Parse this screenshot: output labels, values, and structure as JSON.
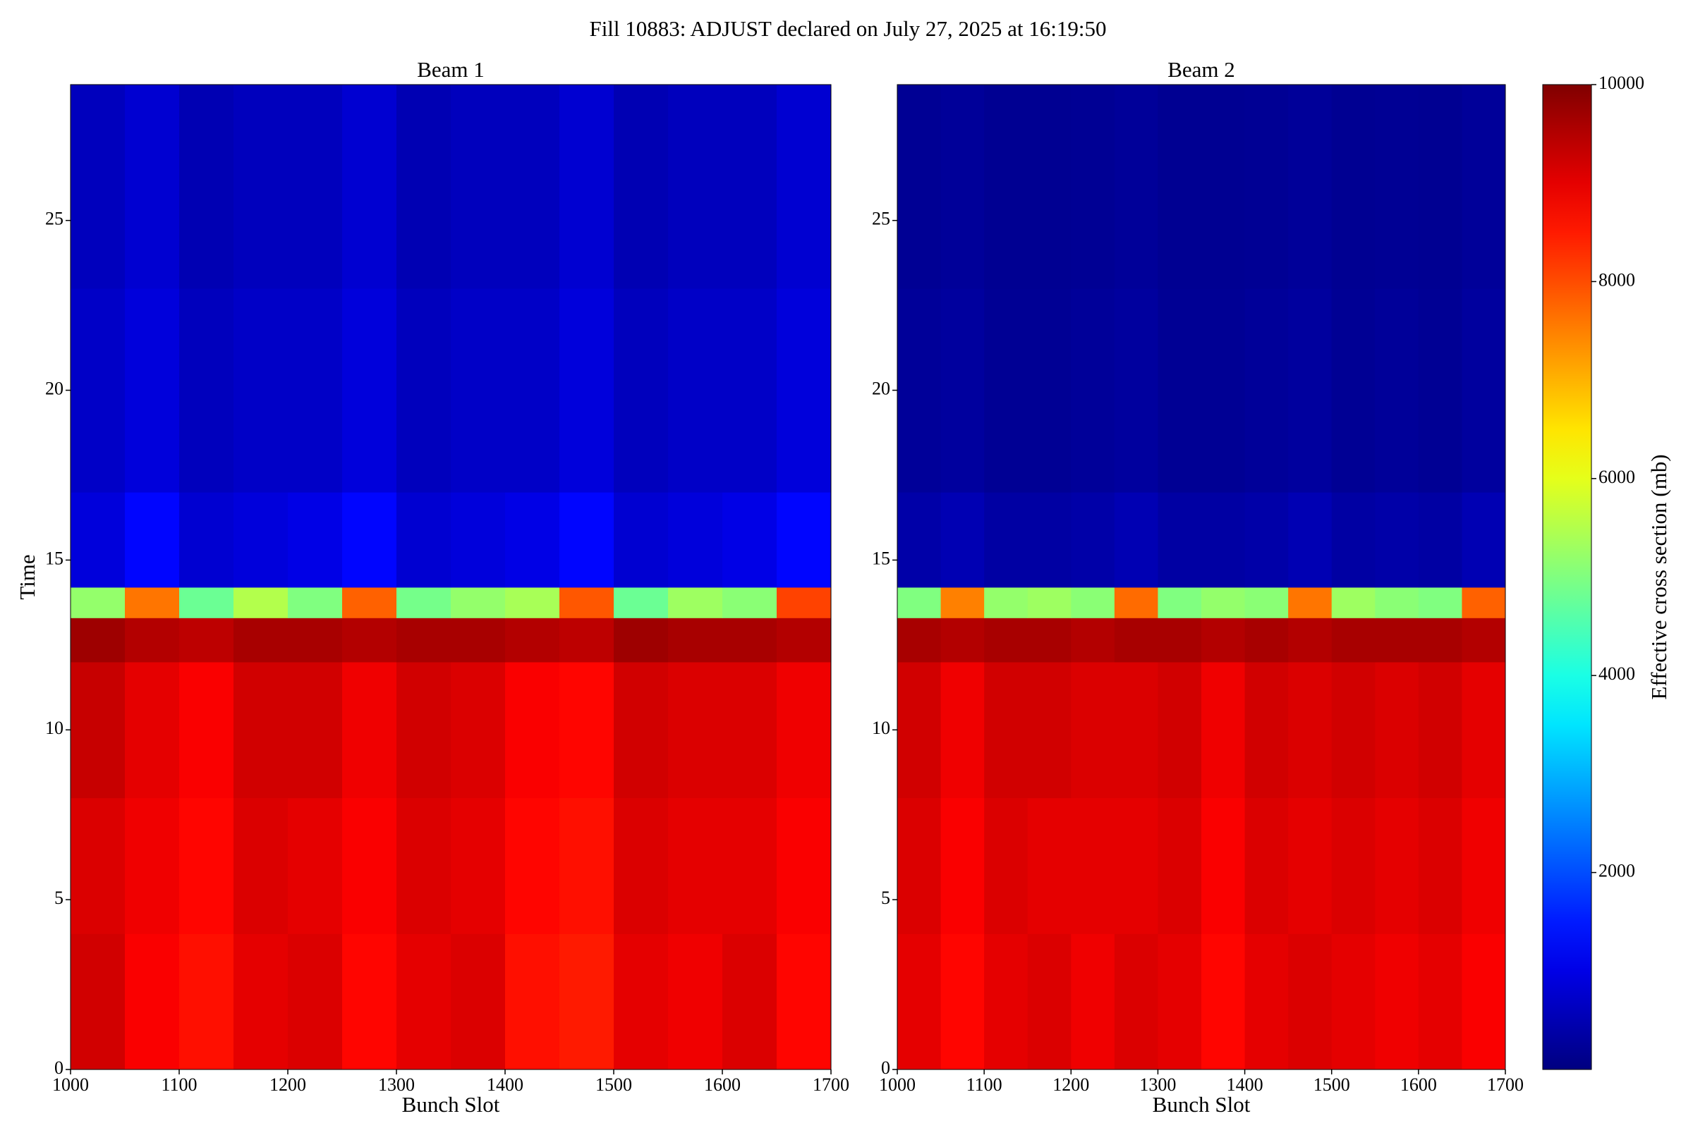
{
  "title": "Fill 10883: ADJUST declared on July 27, 2025 at 16:19:50",
  "chart_data": [
    {
      "type": "heatmap",
      "title": "Beam 1",
      "xlabel": "Bunch Slot",
      "ylabel": "Time",
      "x_edges": [
        1000,
        1050,
        1100,
        1150,
        1200,
        1250,
        1300,
        1350,
        1400,
        1450,
        1500,
        1550,
        1600,
        1650,
        1700
      ],
      "y_edges": [
        0,
        4,
        8,
        12,
        13.3,
        14.2,
        17,
        23,
        29
      ],
      "z": [
        [
          9200,
          8800,
          8600,
          9000,
          9100,
          8700,
          9000,
          9100,
          8600,
          8500,
          9000,
          8900,
          9100,
          8700
        ],
        [
          9100,
          8900,
          8700,
          9100,
          9000,
          8800,
          9100,
          9000,
          8700,
          8600,
          9100,
          9000,
          9000,
          8800
        ],
        [
          9300,
          9000,
          8800,
          9200,
          9200,
          8900,
          9200,
          9100,
          8800,
          8700,
          9200,
          9100,
          9100,
          8900
        ],
        [
          9700,
          9500,
          9400,
          9600,
          9600,
          9500,
          9600,
          9600,
          9500,
          9400,
          9700,
          9600,
          9600,
          9500
        ],
        [
          5200,
          7600,
          4800,
          5500,
          5000,
          7800,
          4900,
          5200,
          5400,
          7900,
          4800,
          5300,
          5100,
          8100
        ],
        [
          900,
          1300,
          800,
          900,
          1000,
          1300,
          800,
          900,
          1000,
          1300,
          800,
          900,
          1000,
          1300
        ],
        [
          700,
          900,
          600,
          700,
          700,
          900,
          600,
          700,
          700,
          900,
          600,
          700,
          700,
          900
        ],
        [
          600,
          800,
          500,
          600,
          600,
          800,
          500,
          600,
          600,
          800,
          500,
          600,
          600,
          800
        ]
      ],
      "xlim": [
        1000,
        1700
      ],
      "xticks": [
        1000,
        1100,
        1200,
        1300,
        1400,
        1500,
        1600,
        1700
      ],
      "ylim": [
        0,
        29
      ],
      "yticks": [
        0,
        5,
        10,
        15,
        20,
        25
      ]
    },
    {
      "type": "heatmap",
      "title": "Beam 2",
      "xlabel": "Bunch Slot",
      "x_edges": [
        1000,
        1050,
        1100,
        1150,
        1200,
        1250,
        1300,
        1350,
        1400,
        1450,
        1500,
        1550,
        1600,
        1650,
        1700
      ],
      "y_edges": [
        0,
        4,
        8,
        12,
        13.3,
        14.2,
        17,
        23,
        29
      ],
      "z": [
        [
          9000,
          8700,
          9000,
          9100,
          8900,
          9100,
          9000,
          8700,
          9000,
          9100,
          9000,
          8900,
          9000,
          8800
        ],
        [
          9100,
          8800,
          9100,
          9000,
          9000,
          9000,
          9100,
          8800,
          9100,
          9000,
          9100,
          9000,
          9100,
          8900
        ],
        [
          9200,
          8900,
          9200,
          9200,
          9100,
          9100,
          9200,
          8900,
          9200,
          9100,
          9200,
          9100,
          9200,
          9000
        ],
        [
          9600,
          9500,
          9600,
          9600,
          9500,
          9600,
          9600,
          9500,
          9600,
          9500,
          9600,
          9600,
          9600,
          9500
        ],
        [
          5000,
          7500,
          5200,
          5300,
          5100,
          7700,
          5000,
          5200,
          5100,
          7600,
          5300,
          5100,
          5000,
          7800
        ],
        [
          400,
          500,
          350,
          350,
          400,
          500,
          350,
          350,
          400,
          500,
          350,
          400,
          350,
          500
        ],
        [
          250,
          300,
          200,
          200,
          250,
          300,
          200,
          200,
          250,
          300,
          200,
          250,
          200,
          300
        ],
        [
          200,
          250,
          180,
          180,
          200,
          250,
          180,
          180,
          200,
          250,
          180,
          200,
          180,
          250
        ]
      ],
      "xlim": [
        1000,
        1700
      ],
      "xticks": [
        1000,
        1100,
        1200,
        1300,
        1400,
        1500,
        1600,
        1700
      ],
      "ylim": [
        0,
        29
      ],
      "yticks": [
        0,
        5,
        10,
        15,
        20,
        25
      ]
    }
  ],
  "colorbar": {
    "label": "Effective cross section (mb)",
    "colormap": "jet",
    "lim": [
      0,
      10000
    ],
    "ticks": [
      2000,
      4000,
      6000,
      8000,
      10000
    ]
  }
}
